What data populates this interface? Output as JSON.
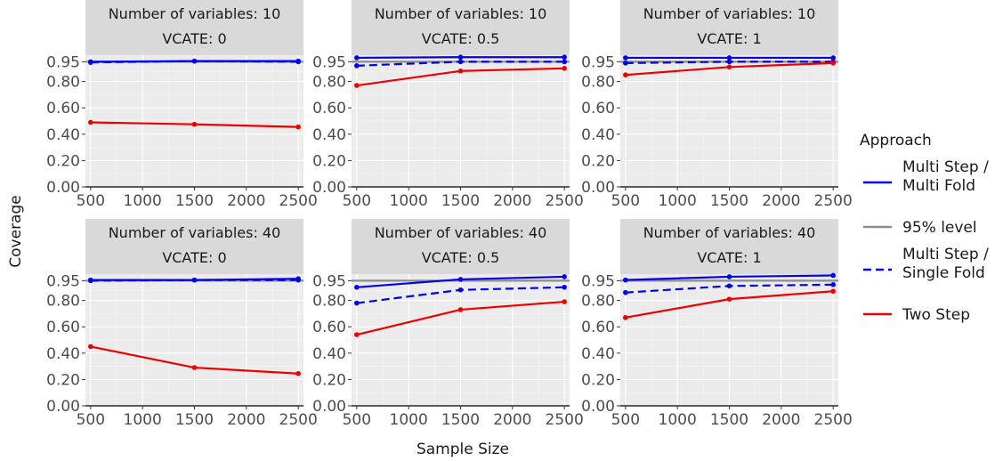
{
  "chart_data": {
    "type": "line",
    "xlabel": "Sample Size",
    "ylabel": "Coverage",
    "x": [
      500,
      1500,
      2500
    ],
    "x_ticks": [
      "500",
      "1000",
      "1500",
      "2000",
      "2500"
    ],
    "y_ticks": [
      "0.00",
      "0.20",
      "0.40",
      "0.60",
      "0.80",
      "0.95"
    ],
    "ylim": [
      0,
      1.0
    ],
    "xlim": [
      450,
      2550
    ],
    "legend": {
      "title": "Approach",
      "placement": "right",
      "entries": [
        {
          "id": "msmf",
          "label_lines": [
            "Multi Step /",
            "Multi Fold"
          ],
          "color": "#0000EE",
          "dash": "solid"
        },
        {
          "id": "level",
          "label_lines": [
            "95% level"
          ],
          "color": "#8c8c8c",
          "dash": "solid"
        },
        {
          "id": "mssf",
          "label_lines": [
            "Multi Step /",
            "Single Fold"
          ],
          "color": "#0000EE",
          "dash": "dashed"
        },
        {
          "id": "two",
          "label_lines": [
            "Two Step"
          ],
          "color": "#EE0000",
          "dash": "solid"
        }
      ]
    },
    "reference_level": 0.95,
    "panels": [
      {
        "strip": [
          "Number of variables: 10",
          "VCATE: 0"
        ],
        "series": {
          "msmf": [
            0.95,
            0.955,
            0.955
          ],
          "mssf": [
            0.945,
            0.955,
            0.95
          ],
          "two": [
            0.49,
            0.475,
            0.455
          ]
        }
      },
      {
        "strip": [
          "Number of variables: 10",
          "VCATE: 0.5"
        ],
        "series": {
          "msmf": [
            0.98,
            0.985,
            0.985
          ],
          "mssf": [
            0.92,
            0.95,
            0.95
          ],
          "two": [
            0.77,
            0.88,
            0.9
          ]
        }
      },
      {
        "strip": [
          "Number of variables: 10",
          "VCATE: 1"
        ],
        "series": {
          "msmf": [
            0.98,
            0.98,
            0.98
          ],
          "mssf": [
            0.94,
            0.95,
            0.95
          ],
          "two": [
            0.85,
            0.91,
            0.94
          ]
        }
      },
      {
        "strip": [
          "Number of variables: 40",
          "VCATE: 0"
        ],
        "series": {
          "msmf": [
            0.955,
            0.955,
            0.965
          ],
          "mssf": [
            0.95,
            0.955,
            0.955
          ],
          "two": [
            0.45,
            0.29,
            0.245
          ]
        }
      },
      {
        "strip": [
          "Number of variables: 40",
          "VCATE: 0.5"
        ],
        "series": {
          "msmf": [
            0.9,
            0.96,
            0.98
          ],
          "mssf": [
            0.78,
            0.88,
            0.9
          ],
          "two": [
            0.54,
            0.73,
            0.79
          ]
        }
      },
      {
        "strip": [
          "Number of variables: 40",
          "VCATE: 1"
        ],
        "series": {
          "msmf": [
            0.955,
            0.98,
            0.99
          ],
          "mssf": [
            0.86,
            0.91,
            0.92
          ],
          "two": [
            0.67,
            0.81,
            0.87
          ]
        }
      }
    ]
  }
}
